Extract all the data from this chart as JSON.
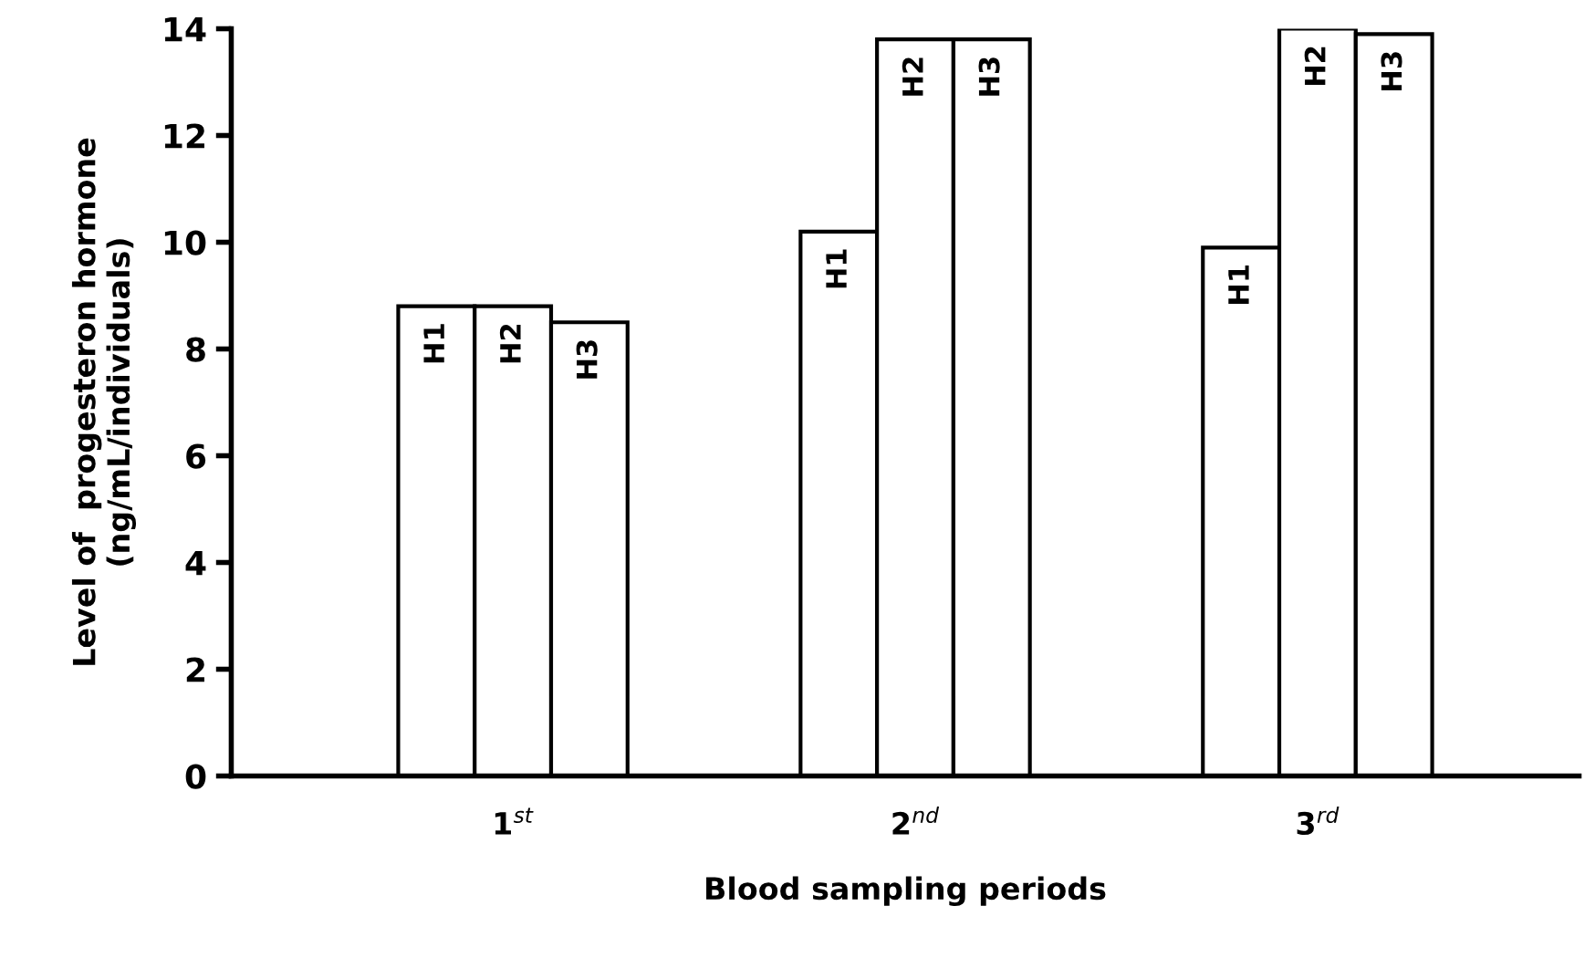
{
  "chart_data": {
    "type": "bar",
    "xlabel": "Blood sampling periods",
    "ylabel": "Level of  progesteron hormone\n(ng/mL/individuals)",
    "categories": [
      "1$^{st}$",
      "2$^{nd}$",
      "3$^{rd}$"
    ],
    "series": [
      {
        "name": "H1",
        "color": "#ffffff",
        "values": [
          8.8,
          10.2,
          9.9
        ]
      },
      {
        "name": "H2",
        "color": "#ffffff",
        "values": [
          8.8,
          13.8,
          14.0
        ]
      },
      {
        "name": "H3",
        "color": "#ffffff",
        "values": [
          8.5,
          13.8,
          13.9
        ]
      }
    ],
    "ylim": [
      0,
      14
    ],
    "yticks": [
      0,
      2,
      4,
      6,
      8,
      10,
      12,
      14
    ],
    "grid": false,
    "legend": false
  }
}
